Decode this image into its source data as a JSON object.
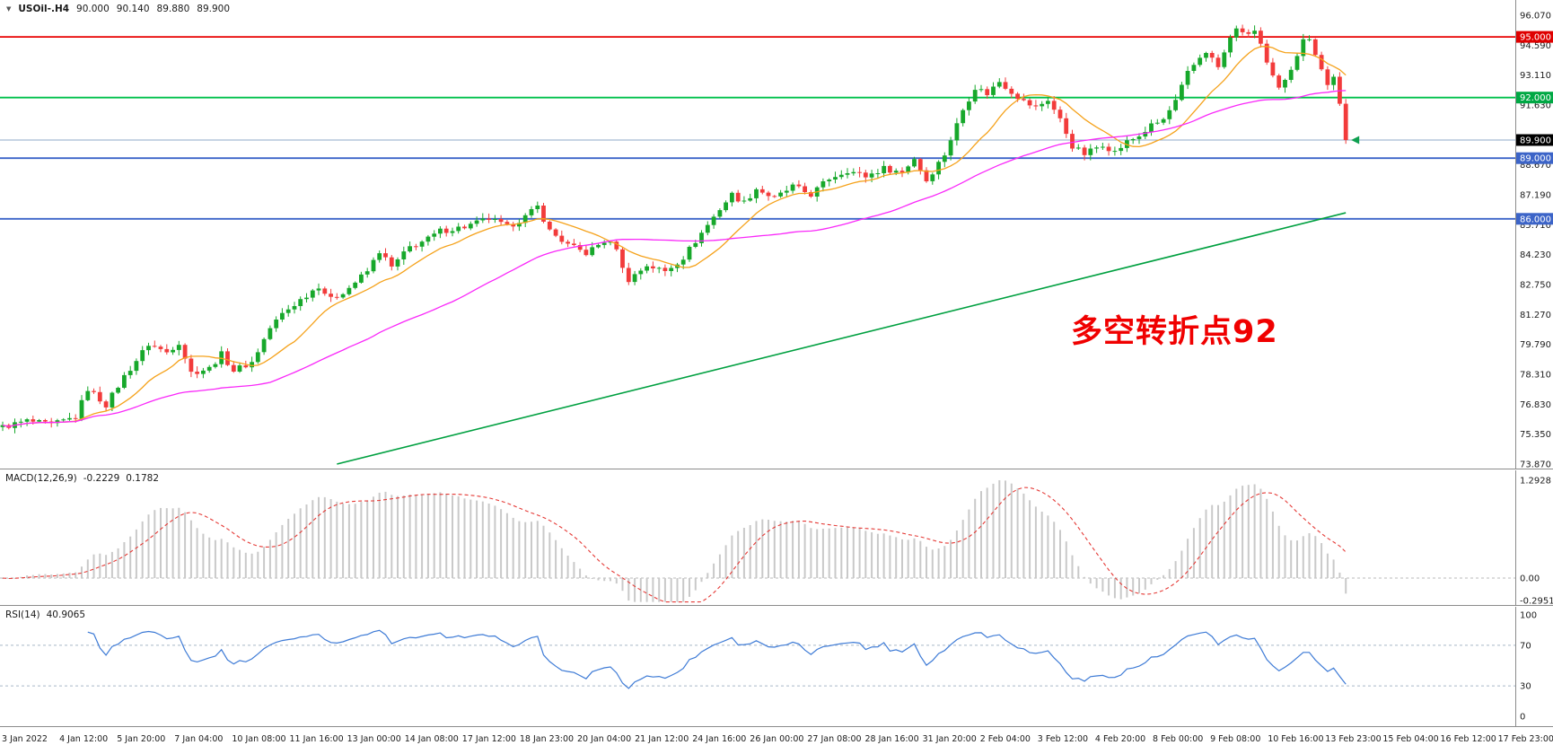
{
  "header": {
    "dropdown_icon": "▼",
    "symbol": "USOil-.H4",
    "open": "90.000",
    "high": "90.140",
    "low": "89.880",
    "close": "89.900"
  },
  "annotation": {
    "text": "多空转折点92",
    "color": "#F00000"
  },
  "macd_header": {
    "name": "MACD(12,26,9)",
    "main_value": "-0.2229",
    "signal_value": "0.1782"
  },
  "rsi_header": {
    "name": "RSI(14)",
    "value": "40.9065"
  },
  "chart_data": [
    {
      "type": "candlestick",
      "title": "USOil-.H4",
      "symbol": "USOil-",
      "timeframe": "H4",
      "ohlc_current": {
        "open": 90.0,
        "high": 90.14,
        "low": 89.88,
        "close": 89.9
      },
      "n_candles": 222,
      "y_range": [
        73.87,
        96.07
      ],
      "price_axis_ticks": [
        "96.070",
        "94.590",
        "93.110",
        "91.630",
        "88.670",
        "87.190",
        "85.710",
        "84.230",
        "82.750",
        "81.270",
        "79.790",
        "78.310",
        "76.830",
        "75.350",
        "73.870"
      ],
      "close_anchors": [
        [
          0,
          75.7
        ],
        [
          4,
          76.0
        ],
        [
          8,
          75.8
        ],
        [
          12,
          76.2
        ],
        [
          14,
          77.6
        ],
        [
          17,
          76.8
        ],
        [
          20,
          78.2
        ],
        [
          24,
          79.8
        ],
        [
          27,
          79.4
        ],
        [
          29,
          79.9
        ],
        [
          31,
          78.4
        ],
        [
          34,
          78.6
        ],
        [
          36,
          79.3
        ],
        [
          38,
          78.5
        ],
        [
          41,
          78.9
        ],
        [
          44,
          80.6
        ],
        [
          46,
          81.3
        ],
        [
          49,
          82.0
        ],
        [
          52,
          82.7
        ],
        [
          54,
          82.0
        ],
        [
          57,
          82.6
        ],
        [
          60,
          83.4
        ],
        [
          62,
          84.4
        ],
        [
          64,
          83.6
        ],
        [
          67,
          84.6
        ],
        [
          70,
          85.0
        ],
        [
          72,
          85.4
        ],
        [
          76,
          85.6
        ],
        [
          80,
          86.0
        ],
        [
          83,
          85.6
        ],
        [
          86,
          86.1
        ],
        [
          88,
          86.6
        ],
        [
          90,
          85.4
        ],
        [
          93,
          84.7
        ],
        [
          96,
          84.3
        ],
        [
          99,
          84.9
        ],
        [
          101,
          84.6
        ],
        [
          102,
          83.5
        ],
        [
          103,
          83.0
        ],
        [
          106,
          83.7
        ],
        [
          109,
          83.4
        ],
        [
          112,
          84.1
        ],
        [
          115,
          85.3
        ],
        [
          118,
          86.5
        ],
        [
          120,
          87.2
        ],
        [
          122,
          86.8
        ],
        [
          124,
          87.5
        ],
        [
          127,
          87.0
        ],
        [
          130,
          87.6
        ],
        [
          133,
          87.2
        ],
        [
          136,
          88.0
        ],
        [
          139,
          88.4
        ],
        [
          142,
          88.1
        ],
        [
          145,
          88.5
        ],
        [
          148,
          88.3
        ],
        [
          150,
          89.0
        ],
        [
          152,
          87.9
        ],
        [
          155,
          89.2
        ],
        [
          158,
          91.4
        ],
        [
          160,
          92.5
        ],
        [
          162,
          92.2
        ],
        [
          164,
          92.8
        ],
        [
          166,
          92.3
        ],
        [
          168,
          91.8
        ],
        [
          170,
          91.5
        ],
        [
          172,
          91.9
        ],
        [
          174,
          90.9
        ],
        [
          176,
          89.6
        ],
        [
          178,
          89.2
        ],
        [
          181,
          89.7
        ],
        [
          183,
          89.3
        ],
        [
          185,
          89.8
        ],
        [
          187,
          90.1
        ],
        [
          189,
          90.6
        ],
        [
          191,
          90.9
        ],
        [
          193,
          91.8
        ],
        [
          195,
          93.2
        ],
        [
          197,
          94.0
        ],
        [
          198,
          94.3
        ],
        [
          200,
          93.5
        ],
        [
          202,
          94.9
        ],
        [
          203,
          95.5
        ],
        [
          204,
          95.1
        ],
        [
          206,
          95.3
        ],
        [
          207,
          94.6
        ],
        [
          208,
          93.6
        ],
        [
          210,
          92.4
        ],
        [
          212,
          93.5
        ],
        [
          214,
          94.8
        ],
        [
          215,
          95.0
        ],
        [
          216,
          94.2
        ],
        [
          218,
          92.6
        ],
        [
          219,
          93.1
        ],
        [
          220,
          91.6
        ],
        [
          221,
          89.9
        ]
      ],
      "hlines": [
        {
          "price": 95.0,
          "label": "95.000",
          "color": "#E80000",
          "label_bg": "#DF0000",
          "width": 1.8
        },
        {
          "price": 92.0,
          "label": "92.000",
          "color": "#00C04B",
          "label_bg": "#00A844",
          "width": 1.8
        },
        {
          "price": 89.0,
          "label": "89.000",
          "color": "#3C64C8",
          "label_bg": "#3C64C8",
          "width": 1.8
        },
        {
          "price": 86.0,
          "label": "86.000",
          "color": "#3C64C8",
          "label_bg": "#3C64C8",
          "width": 1.8
        }
      ],
      "current_price": {
        "value": 89.9,
        "label": "89.900",
        "label_bg": "#000000",
        "line_color": "#8FA8C8"
      },
      "moving_averages": [
        {
          "name": "ma-fast",
          "period": 12,
          "color": "#F5A21B"
        },
        {
          "name": "ma-mid",
          "period": 45,
          "color": "#F928F9"
        },
        {
          "name": "ma-slow",
          "color": "#00A040",
          "line_anchors": [
            [
              55,
              73.87
            ],
            [
              221,
              86.3
            ]
          ]
        }
      ],
      "up_color": "#17A82B",
      "down_color": "#F23B3B",
      "x_labels": [
        "3 Jan 2022",
        "4 Jan 12:00",
        "5 Jan 20:00",
        "7 Jan 04:00",
        "10 Jan 08:00",
        "11 Jan 16:00",
        "13 Jan 00:00",
        "14 Jan 08:00",
        "17 Jan 12:00",
        "18 Jan 23:00",
        "20 Jan 04:00",
        "21 Jan 12:00",
        "24 Jan 16:00",
        "26 Jan 00:00",
        "27 Jan 08:00",
        "28 Jan 16:00",
        "31 Jan 20:00",
        "2 Feb 04:00",
        "3 Feb 12:00",
        "4 Feb 20:00",
        "8 Feb 00:00",
        "9 Feb 08:00",
        "10 Feb 16:00",
        "13 Feb 23:00",
        "15 Feb 04:00",
        "16 Feb 12:00",
        "17 Feb 23:00"
      ]
    },
    {
      "type": "macd",
      "label": "MACD(12,26,9)",
      "fast": 12,
      "slow": 26,
      "signal_period": 9,
      "main_value": -0.2229,
      "signal_value": 0.1782,
      "y_ticks": [
        "1.2928",
        "0.00",
        "-0.2951"
      ],
      "y_range": [
        -0.2951,
        1.2928
      ],
      "histogram_color": "#C9C9C9",
      "signal_color": "#E53935"
    },
    {
      "type": "rsi",
      "label": "RSI(14)",
      "period": 14,
      "value": 40.9065,
      "levels": [
        70,
        30
      ],
      "y_ticks": [
        "100",
        "70",
        "30",
        "0"
      ],
      "y_range": [
        0,
        100
      ],
      "line_color": "#3E7BD6",
      "level_color": "#A8B8C8"
    }
  ]
}
